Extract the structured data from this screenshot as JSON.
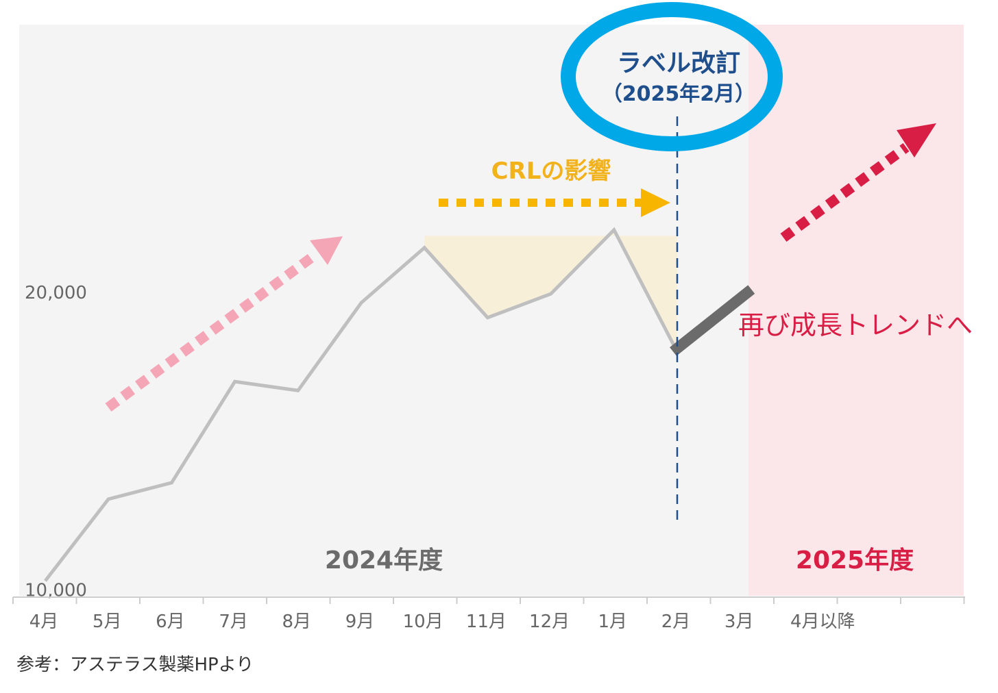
{
  "chart_data": {
    "type": "line",
    "categories": [
      "4月",
      "5月",
      "6月",
      "7月",
      "8月",
      "9月",
      "10月",
      "11月",
      "12月",
      "1月",
      "2月",
      "3月",
      "4月以降"
    ],
    "series": [
      {
        "values": [
          10300,
          13050,
          13600,
          17000,
          16700,
          19650,
          21500,
          19150,
          19950,
          22100,
          18000,
          null,
          null
        ]
      }
    ],
    "projection": {
      "from": [
        "2月",
        18100
      ],
      "to": [
        "3月",
        20100
      ]
    },
    "ylim": [
      9800,
      29000
    ],
    "yticks": [
      10000,
      20000
    ],
    "ytick_labels": [
      "10,000",
      "20,000"
    ],
    "grid": false,
    "periods": [
      {
        "label": "2024年度"
      },
      {
        "label": "2025年度"
      }
    ],
    "annotations": {
      "label_revision_line1": "ラベル改訂",
      "label_revision_line2": "（2025年2月）",
      "crl_impact": "CRLの影響",
      "growth_again": "再び成長トレンドへ"
    }
  },
  "source_note": "参考：アステラス製薬HPより",
  "colors": {
    "line": "#bfbfbf",
    "projection": "#6b6b6b",
    "fy2024_bg": "#f4f4f4",
    "fy2025_bg": "#fbe6ea",
    "crl_area": "#f8efd9",
    "pink_arrow": "#f4a6b7",
    "orange_arrow": "#f8b500",
    "red_arrow": "#d81e45",
    "circle": "#00a8e8",
    "dash_line": "#1f4e8c",
    "fy2024_text": "#6b6b6b",
    "fy2025_text": "#d81e45",
    "blue_text": "#1f4e8c"
  }
}
